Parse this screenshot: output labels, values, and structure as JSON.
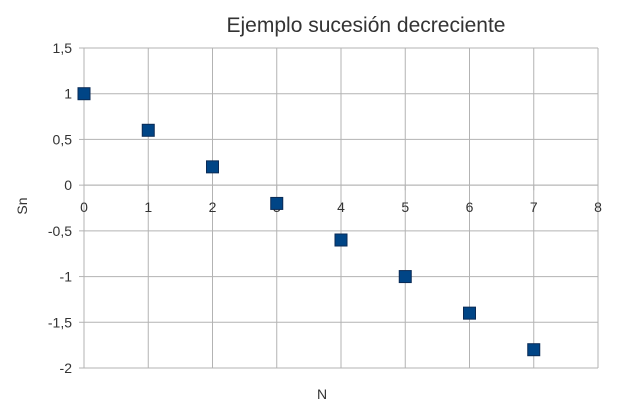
{
  "chart_data": {
    "type": "scatter",
    "title": "Ejemplo sucesión decreciente",
    "xlabel": "N",
    "ylabel": "Sn",
    "xlim": [
      0,
      8
    ],
    "ylim": [
      -2,
      1.5
    ],
    "grid": true,
    "x_ticks": [
      "0",
      "1",
      "2",
      "3",
      "4",
      "5",
      "6",
      "7",
      "8"
    ],
    "y_ticks": [
      "1,5",
      "1",
      "0,5",
      "0",
      "-0,5",
      "-1",
      "-1,5",
      "-2"
    ],
    "series": [
      {
        "x": [
          0,
          1,
          2,
          3,
          4,
          5,
          6,
          7
        ],
        "y": [
          1,
          0.6,
          0.2,
          -0.2,
          -0.6,
          -1,
          -1.4,
          -1.8
        ]
      }
    ],
    "marker_color": "#004586"
  }
}
